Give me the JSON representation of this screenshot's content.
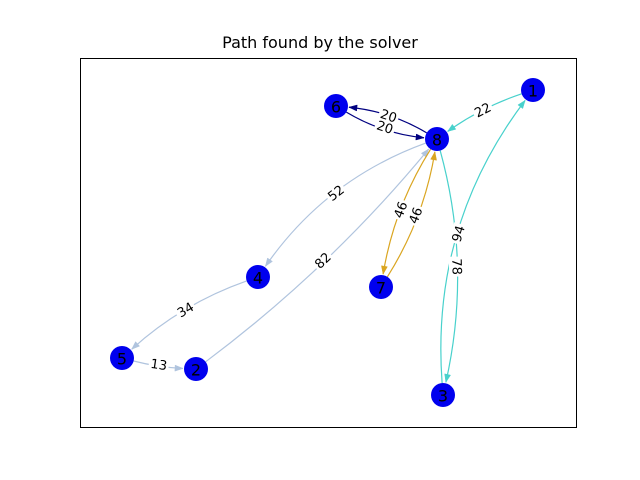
{
  "title": "Path found by the solver",
  "colors": {
    "node": "#0000ee",
    "frame": "#000000"
  },
  "nodes": [
    "1",
    "2",
    "3",
    "4",
    "5",
    "6",
    "7",
    "8"
  ],
  "edges": [
    {
      "from": "8",
      "to": "6",
      "weight": "20",
      "color": "#000080"
    },
    {
      "from": "6",
      "to": "8",
      "weight": "20",
      "color": "#000080"
    },
    {
      "from": "1",
      "to": "8",
      "weight": "22",
      "color": "#48d1cc"
    },
    {
      "from": "8",
      "to": "4",
      "weight": "52",
      "color": "#b0c4de"
    },
    {
      "from": "2",
      "to": "8",
      "weight": "82",
      "color": "#b0c4de"
    },
    {
      "from": "4",
      "to": "5",
      "weight": "34",
      "color": "#b0c4de"
    },
    {
      "from": "5",
      "to": "2",
      "weight": "13",
      "color": "#b0c4de"
    },
    {
      "from": "8",
      "to": "7",
      "weight": "46",
      "color": "#daa520"
    },
    {
      "from": "7",
      "to": "8",
      "weight": "46",
      "color": "#daa520"
    },
    {
      "from": "8",
      "to": "3",
      "weight": "78",
      "color": "#48d1cc"
    },
    {
      "from": "3",
      "to": "1",
      "weight": "94",
      "color": "#48d1cc"
    }
  ]
}
